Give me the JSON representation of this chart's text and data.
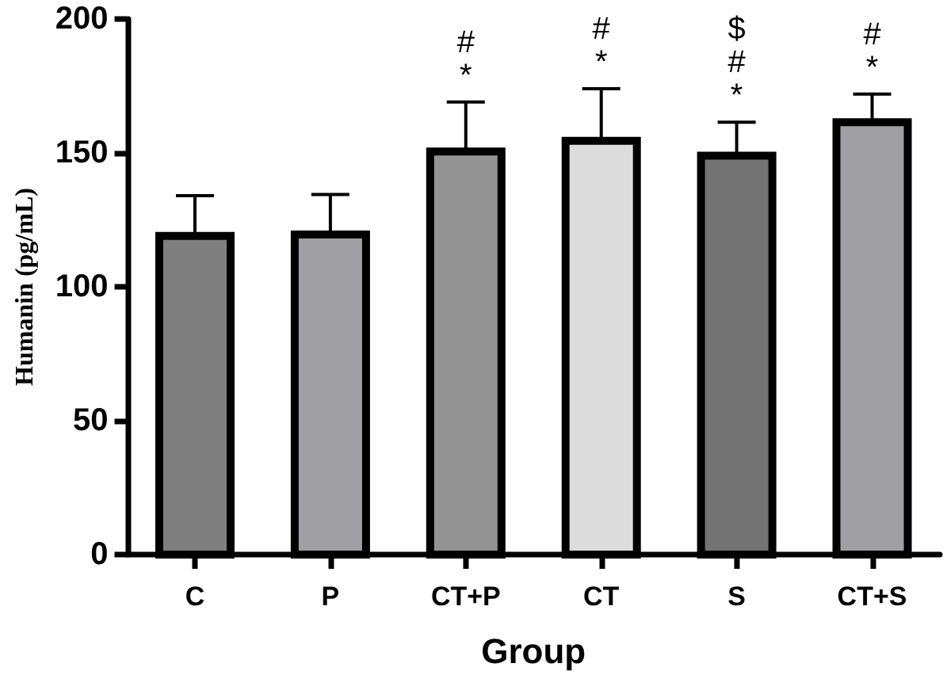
{
  "chart_data": {
    "type": "bar",
    "xlabel": "Group",
    "ylabel": "Humanin (pg/mL)",
    "categories": [
      "C",
      "P",
      "CT+P",
      "CT",
      "S",
      "CT+S"
    ],
    "values": [
      119,
      119.5,
      150.5,
      154.5,
      149,
      161.5
    ],
    "colors": [
      "#7f7f7f",
      "#a0a0a4",
      "#939393",
      "#dcdcdc",
      "#737373",
      "#a0a0a4"
    ],
    "errors": [
      [
        119,
        134
      ],
      [
        119.5,
        134.5
      ],
      [
        150.5,
        169
      ],
      [
        154.5,
        174
      ],
      [
        149,
        161.5
      ],
      [
        161.5,
        172
      ]
    ],
    "ylim": [
      0,
      200
    ],
    "yticks": [
      0,
      50,
      100,
      150,
      200
    ],
    "grid": false,
    "annotations": [
      {
        "text": "#\n*",
        "x": "CT+P",
        "y": 169
      },
      {
        "text": "#\n*",
        "x": "CT",
        "y": 174
      },
      {
        "text": "$\n#\n*",
        "x": "S",
        "y": 161.5
      },
      {
        "text": "#\n*",
        "x": "CT+S",
        "y": 172
      }
    ]
  }
}
